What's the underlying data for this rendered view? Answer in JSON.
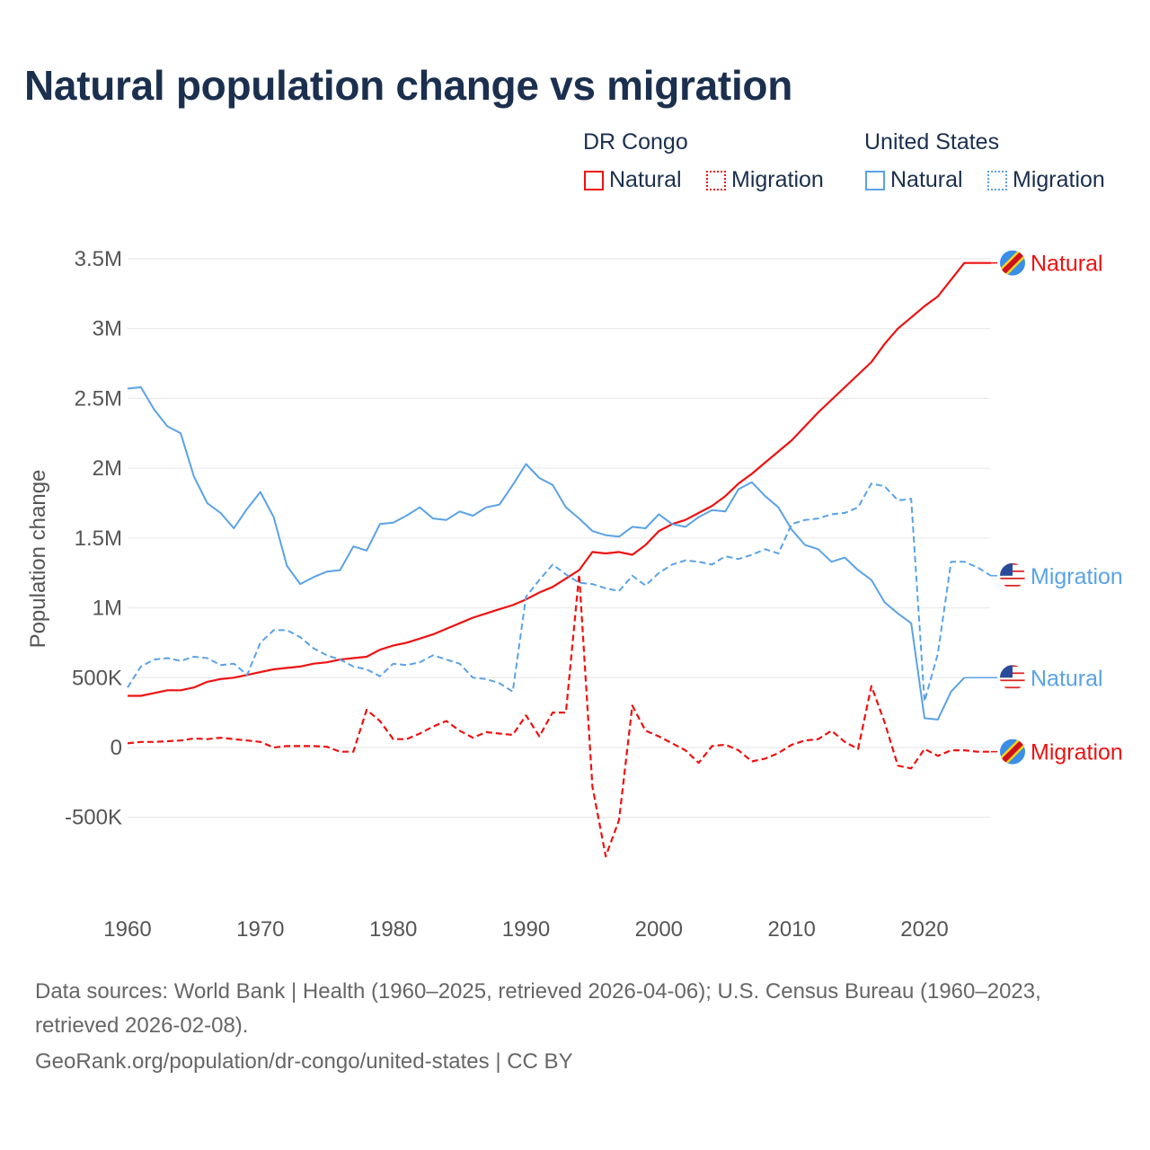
{
  "title": "Natural population change vs migration",
  "legend": {
    "groups": [
      {
        "name": "DR Congo",
        "items": [
          "Natural",
          "Migration"
        ]
      },
      {
        "name": "United States",
        "items": [
          "Natural",
          "Migration"
        ]
      }
    ]
  },
  "colors": {
    "drc": "#ee1111",
    "us": "#5aa2e6",
    "grid": "#e6e6e6",
    "text": "#555555"
  },
  "chart_data": {
    "type": "line",
    "ylabel": "Population change",
    "xlim": [
      1960,
      2025
    ],
    "ylim": [
      -1000000,
      3600000
    ],
    "yticks": [
      -500000,
      0,
      500000,
      1000000,
      1500000,
      2000000,
      2500000,
      3000000,
      3500000
    ],
    "ytick_labels": [
      "-500K",
      "0",
      "500K",
      "1M",
      "1.5M",
      "2M",
      "2.5M",
      "3M",
      "3.5M"
    ],
    "xticks": [
      1960,
      1970,
      1980,
      1990,
      2000,
      2010,
      2020
    ],
    "xtick_labels": [
      "1960",
      "1970",
      "1980",
      "1990",
      "2000",
      "2010",
      "2020"
    ],
    "grid": true,
    "start_year": 1960,
    "series": [
      {
        "id": "drc-natural",
        "country": "DR Congo",
        "name": "Natural",
        "dashed": false,
        "flag": "drc",
        "values": [
          0.37,
          0.37,
          0.39,
          0.41,
          0.41,
          0.43,
          0.47,
          0.49,
          0.5,
          0.52,
          0.54,
          0.56,
          0.57,
          0.58,
          0.6,
          0.61,
          0.63,
          0.64,
          0.65,
          0.7,
          0.73,
          0.75,
          0.78,
          0.81,
          0.85,
          0.89,
          0.93,
          0.96,
          0.99,
          1.02,
          1.06,
          1.11,
          1.15,
          1.21,
          1.27,
          1.4,
          1.39,
          1.4,
          1.38,
          1.45,
          1.55,
          1.6,
          1.63,
          1.68,
          1.73,
          1.8,
          1.89,
          1.96,
          2.04,
          2.12,
          2.2,
          2.3,
          2.4,
          2.49,
          2.58,
          2.67,
          2.76,
          2.89,
          3.0,
          3.08,
          3.16,
          3.23,
          3.35,
          3.47,
          3.47,
          3.47
        ]
      },
      {
        "id": "drc-migration",
        "country": "DR Congo",
        "name": "Migration",
        "dashed": true,
        "flag": "drc",
        "values": [
          0.03,
          0.04,
          0.04,
          0.045,
          0.05,
          0.065,
          0.06,
          0.07,
          0.06,
          0.05,
          0.04,
          0.0,
          0.01,
          0.01,
          0.01,
          0.005,
          -0.03,
          -0.03,
          0.27,
          0.19,
          0.06,
          0.06,
          0.1,
          0.15,
          0.19,
          0.12,
          0.07,
          0.11,
          0.1,
          0.09,
          0.23,
          0.08,
          0.25,
          0.25,
          1.24,
          -0.28,
          -0.78,
          -0.52,
          0.3,
          0.12,
          0.08,
          0.03,
          -0.02,
          -0.11,
          0.01,
          0.02,
          -0.02,
          -0.1,
          -0.08,
          -0.04,
          0.02,
          0.05,
          0.06,
          0.12,
          0.04,
          -0.01,
          0.44,
          0.18,
          -0.13,
          -0.15,
          -0.01,
          -0.06,
          -0.02,
          -0.02,
          -0.03,
          -0.03
        ]
      },
      {
        "id": "us-natural",
        "country": "United States",
        "name": "Natural",
        "dashed": false,
        "flag": "us",
        "values": [
          2.57,
          2.58,
          2.42,
          2.3,
          2.25,
          1.94,
          1.75,
          1.68,
          1.57,
          1.71,
          1.83,
          1.65,
          1.3,
          1.17,
          1.22,
          1.26,
          1.27,
          1.44,
          1.41,
          1.6,
          1.61,
          1.66,
          1.72,
          1.64,
          1.63,
          1.69,
          1.66,
          1.72,
          1.74,
          1.88,
          2.03,
          1.93,
          1.88,
          1.72,
          1.64,
          1.55,
          1.52,
          1.51,
          1.58,
          1.57,
          1.67,
          1.6,
          1.58,
          1.65,
          1.7,
          1.69,
          1.85,
          1.9,
          1.8,
          1.72,
          1.56,
          1.45,
          1.42,
          1.33,
          1.36,
          1.27,
          1.2,
          1.04,
          0.96,
          0.89,
          0.21,
          0.2,
          0.4,
          0.5
        ]
      },
      {
        "id": "us-migration",
        "country": "United States",
        "name": "Migration",
        "dashed": true,
        "flag": "us",
        "values": [
          0.43,
          0.58,
          0.63,
          0.64,
          0.62,
          0.65,
          0.64,
          0.59,
          0.6,
          0.52,
          0.75,
          0.84,
          0.84,
          0.79,
          0.71,
          0.66,
          0.63,
          0.58,
          0.56,
          0.51,
          0.6,
          0.59,
          0.61,
          0.66,
          0.63,
          0.6,
          0.5,
          0.49,
          0.46,
          0.4,
          1.08,
          1.2,
          1.31,
          1.24,
          1.18,
          1.17,
          1.14,
          1.12,
          1.23,
          1.16,
          1.25,
          1.31,
          1.34,
          1.33,
          1.31,
          1.37,
          1.35,
          1.38,
          1.42,
          1.39,
          1.6,
          1.63,
          1.64,
          1.67,
          1.68,
          1.72,
          1.89,
          1.87,
          1.77,
          1.78,
          0.33,
          0.67,
          1.33,
          1.33,
          1.29,
          1.23
        ]
      }
    ],
    "value_unit": "millions"
  },
  "footer": {
    "line1": "Data sources: World Bank | Health (1960–2025, retrieved 2026-04-06); U.S. Census Bureau (1960–2023,",
    "line2": "retrieved 2026-02-08).",
    "line3": "GeoRank.org/population/dr-congo/united-states | CC BY"
  }
}
